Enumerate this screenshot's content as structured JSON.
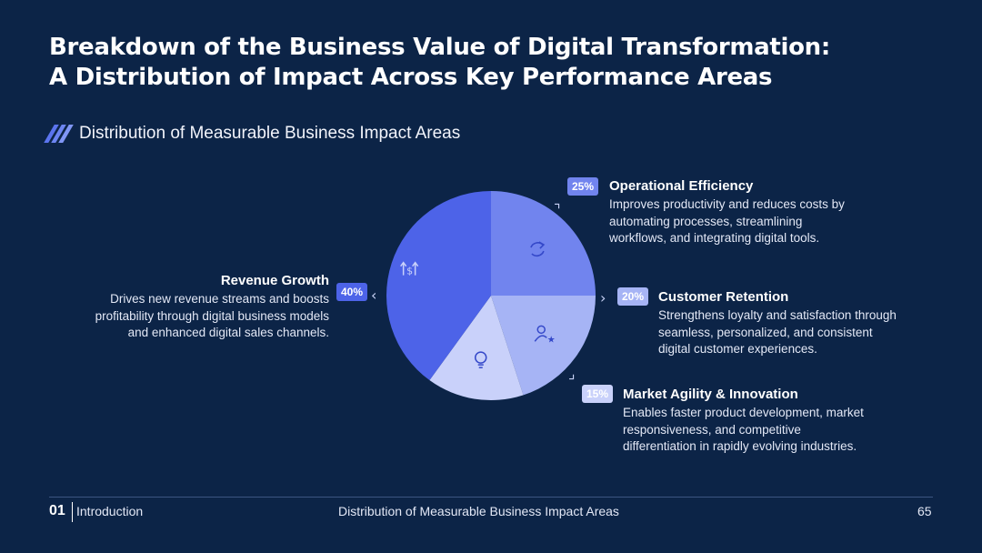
{
  "title": {
    "line1": "Breakdown of the Business Value of Digital Transformation:",
    "line2": "A Distribution of Impact Across Key Performance Areas"
  },
  "subtitle": "Distribution of Measurable Business Impact Areas",
  "chart_data": {
    "type": "pie",
    "title": "Distribution of Measurable Business Impact Areas",
    "slices": [
      {
        "name": "Operational Efficiency",
        "value": 25,
        "label": "25%",
        "color": "#7184ee",
        "icon": "sync-icon",
        "description": "Improves productivity and reduces costs by automating processes, streamlining workflows, and integrating digital tools.",
        "desc_lines": [
          "Improves productivity and reduces costs by",
          "automating processes, streamlining",
          "workflows, and integrating digital tools."
        ]
      },
      {
        "name": "Customer Retention",
        "value": 20,
        "label": "20%",
        "color": "#a6b4f5",
        "icon": "user-star-icon",
        "description": "Strengthens loyalty and satisfaction through seamless, personalized, and consistent digital customer experiences.",
        "desc_lines": [
          "Strengthens loyalty and satisfaction through",
          "seamless, personalized, and consistent",
          "digital customer experiences."
        ]
      },
      {
        "name": "Market Agility & Innovation",
        "value": 15,
        "label": "15%",
        "color": "#c9d1fa",
        "icon": "lightbulb-icon",
        "description": "Enables faster product development, market responsiveness, and competitive differentiation in rapidly evolving industries.",
        "desc_lines": [
          "Enables faster product development, market",
          "responsiveness, and competitive",
          "differentiation in rapidly evolving industries."
        ]
      },
      {
        "name": "Revenue Growth",
        "value": 40,
        "label": "40%",
        "color": "#4d63e8",
        "icon": "growth-arrows-icon",
        "description": "Drives new revenue streams and boosts profitability through digital business models and enhanced digital sales channels.",
        "desc_lines": [
          "Drives new revenue streams and boosts",
          "profitability through digital business models",
          "and enhanced digital sales channels."
        ]
      }
    ]
  },
  "footer": {
    "number": "01",
    "section": "Introduction",
    "center": "Distribution of Measurable Business Impact Areas",
    "page": "65"
  }
}
